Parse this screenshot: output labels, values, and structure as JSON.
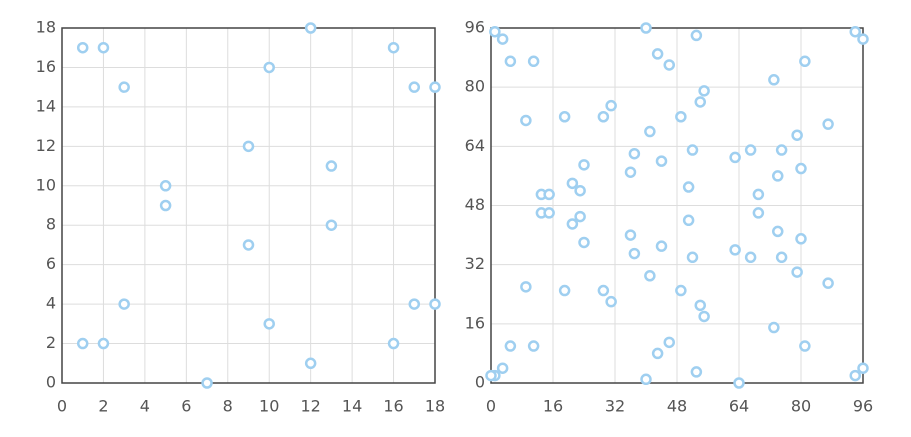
{
  "chart_data": [
    {
      "type": "scatter",
      "color": "#9fcff0",
      "grid": true,
      "x": [
        1,
        2,
        3,
        10,
        12,
        16,
        17,
        18,
        9,
        13,
        5,
        5,
        13,
        9,
        3,
        17,
        18,
        10,
        1,
        2,
        16,
        12,
        7
      ],
      "values": [
        17,
        17,
        15,
        16,
        18,
        17,
        15,
        15,
        12,
        11,
        10,
        9,
        8,
        7,
        4,
        4,
        4,
        3,
        2,
        2,
        2,
        1,
        0
      ],
      "xlim": [
        0,
        18
      ],
      "ylim": [
        0,
        18
      ],
      "xticks": [
        0,
        2,
        4,
        6,
        8,
        10,
        12,
        14,
        16,
        18
      ],
      "yticks": [
        0,
        2,
        4,
        6,
        8,
        10,
        12,
        14,
        16,
        18
      ]
    },
    {
      "type": "scatter",
      "color": "#9fcff0",
      "grid": true,
      "x": [
        1,
        3,
        5,
        11,
        40,
        43,
        46,
        53,
        73,
        81,
        94,
        96,
        55,
        54,
        31,
        29,
        19,
        9,
        49,
        87,
        41,
        79,
        37,
        52,
        67,
        75,
        63,
        44,
        24,
        36,
        80,
        74,
        21,
        23,
        51,
        69,
        13,
        15,
        13,
        15,
        69,
        23,
        21,
        51,
        74,
        36,
        80,
        24,
        44,
        63,
        37,
        52,
        67,
        75,
        79,
        41,
        87,
        9,
        19,
        29,
        49,
        31,
        54,
        55,
        73,
        5,
        11,
        81,
        46,
        43,
        53,
        40,
        64,
        3,
        1,
        0,
        94,
        96
      ],
      "values": [
        95,
        93,
        87,
        87,
        96,
        89,
        86,
        94,
        82,
        87,
        95,
        93,
        79,
        76,
        75,
        72,
        72,
        71,
        72,
        70,
        68,
        67,
        62,
        63,
        63,
        63,
        61,
        60,
        59,
        57,
        58,
        56,
        54,
        52,
        53,
        51,
        51,
        51,
        46,
        46,
        46,
        45,
        43,
        44,
        41,
        40,
        39,
        38,
        37,
        36,
        35,
        34,
        34,
        34,
        30,
        29,
        27,
        26,
        25,
        25,
        25,
        22,
        21,
        18,
        15,
        10,
        10,
        10,
        11,
        8,
        3,
        1,
        0,
        4,
        2,
        2,
        2,
        4
      ],
      "xlim": [
        0,
        96
      ],
      "ylim": [
        0,
        96
      ],
      "xticks": [
        0,
        16,
        32,
        48,
        64,
        80,
        96
      ],
      "yticks": [
        0,
        16,
        32,
        48,
        64,
        80,
        96
      ]
    }
  ]
}
